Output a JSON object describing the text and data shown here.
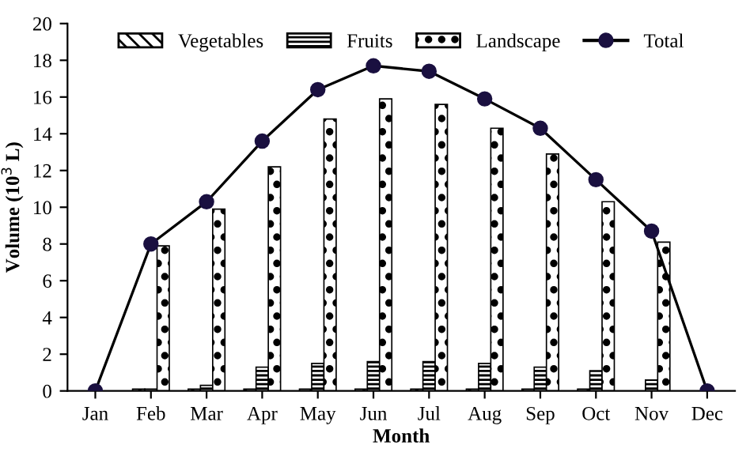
{
  "chart_data": {
    "type": "bar",
    "xlabel": "Month",
    "ylabel": "Volume (10$^{3}$ L)",
    "categories": [
      "Jan",
      "Feb",
      "Mar",
      "Apr",
      "May",
      "Jun",
      "Jul",
      "Aug",
      "Sep",
      "Oct",
      "Nov",
      "Dec"
    ],
    "series": [
      {
        "name": "Vegetables",
        "color": "#000000",
        "values": [
          null,
          0.1,
          0.1,
          0.1,
          0.1,
          0.1,
          0.1,
          0.1,
          0.1,
          0.1,
          null,
          null
        ]
      },
      {
        "name": "Fruits",
        "color": "#000000",
        "values": [
          null,
          0.1,
          0.3,
          1.3,
          1.5,
          1.6,
          1.6,
          1.5,
          1.3,
          1.1,
          0.6,
          null
        ]
      },
      {
        "name": "Landscape",
        "color": "#000000",
        "values": [
          null,
          7.9,
          9.9,
          12.2,
          14.8,
          15.9,
          15.6,
          14.3,
          12.9,
          10.3,
          8.1,
          null
        ]
      },
      {
        "name": "Total",
        "type": "line",
        "color": "#000000",
        "marker": "circle",
        "values": [
          0,
          8.0,
          10.3,
          13.6,
          16.4,
          17.7,
          17.4,
          15.9,
          14.3,
          11.5,
          8.7,
          0
        ]
      }
    ],
    "ylim": [
      0,
      20
    ],
    "yticks": [
      0,
      2,
      4,
      6,
      8,
      10,
      12,
      14,
      16,
      18,
      20
    ],
    "grid": false,
    "legend": "top"
  }
}
